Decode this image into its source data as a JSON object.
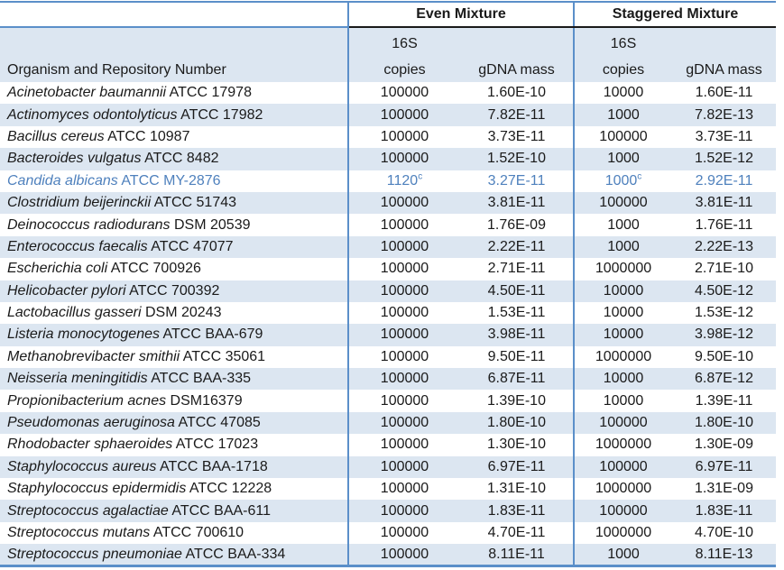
{
  "colors": {
    "band_blue": "#DCE6F1",
    "border_blue": "#5B8FC9",
    "group_underline": "#1A1A1A",
    "highlight_text_blue": "#4F81BD",
    "text": "#1A1A1A"
  },
  "table": {
    "groups": [
      "Even Mixture",
      "Staggered Mixture"
    ],
    "organism_header": "Organism and Repository Number",
    "copies_header_line1": "16S",
    "copies_header_line2": "copies",
    "mass_header": "gDNA mass",
    "footnote_marker": "c",
    "rows": [
      {
        "organism": "Acinetobacter baumannii",
        "repository": "ATCC 17978",
        "even_copies": "100000",
        "even_copies_sup": "",
        "even_mass": "1.60E-10",
        "staggered_copies": "10000",
        "staggered_copies_sup": "",
        "staggered_mass": "1.60E-11",
        "highlighted": false
      },
      {
        "organism": "Actinomyces odontolyticus",
        "repository": "ATCC 17982",
        "even_copies": "100000",
        "even_copies_sup": "",
        "even_mass": "7.82E-11",
        "staggered_copies": "1000",
        "staggered_copies_sup": "",
        "staggered_mass": "7.82E-13",
        "highlighted": false
      },
      {
        "organism": "Bacillus cereus",
        "repository": "ATCC 10987",
        "even_copies": "100000",
        "even_copies_sup": "",
        "even_mass": "3.73E-11",
        "staggered_copies": "100000",
        "staggered_copies_sup": "",
        "staggered_mass": "3.73E-11",
        "highlighted": false
      },
      {
        "organism": "Bacteroides vulgatus",
        "repository": "ATCC 8482",
        "even_copies": "100000",
        "even_copies_sup": "",
        "even_mass": "1.52E-10",
        "staggered_copies": "1000",
        "staggered_copies_sup": "",
        "staggered_mass": "1.52E-12",
        "highlighted": false
      },
      {
        "organism": "Candida albicans",
        "repository": "ATCC MY-2876",
        "even_copies": "1120",
        "even_copies_sup": "c",
        "even_mass": "3.27E-11",
        "staggered_copies": "1000",
        "staggered_copies_sup": "c",
        "staggered_mass": "2.92E-11",
        "highlighted": true
      },
      {
        "organism": "Clostridium beijerinckii",
        "repository": "ATCC 51743",
        "even_copies": "100000",
        "even_copies_sup": "",
        "even_mass": "3.81E-11",
        "staggered_copies": "100000",
        "staggered_copies_sup": "",
        "staggered_mass": "3.81E-11",
        "highlighted": false
      },
      {
        "organism": "Deinococcus radiodurans",
        "repository": "DSM 20539",
        "even_copies": "100000",
        "even_copies_sup": "",
        "even_mass": "1.76E-09",
        "staggered_copies": "1000",
        "staggered_copies_sup": "",
        "staggered_mass": "1.76E-11",
        "highlighted": false
      },
      {
        "organism": "Enterococcus faecalis",
        "repository": "ATCC 47077",
        "even_copies": "100000",
        "even_copies_sup": "",
        "even_mass": "2.22E-11",
        "staggered_copies": "1000",
        "staggered_copies_sup": "",
        "staggered_mass": "2.22E-13",
        "highlighted": false
      },
      {
        "organism": "Escherichia coli",
        "repository": "ATCC 700926",
        "even_copies": "100000",
        "even_copies_sup": "",
        "even_mass": "2.71E-11",
        "staggered_copies": "1000000",
        "staggered_copies_sup": "",
        "staggered_mass": "2.71E-10",
        "highlighted": false
      },
      {
        "organism": "Helicobacter pylori",
        "repository": "ATCC 700392",
        "even_copies": "100000",
        "even_copies_sup": "",
        "even_mass": "4.50E-11",
        "staggered_copies": "10000",
        "staggered_copies_sup": "",
        "staggered_mass": "4.50E-12",
        "highlighted": false
      },
      {
        "organism": "Lactobacillus gasseri",
        "repository": "DSM 20243",
        "even_copies": "100000",
        "even_copies_sup": "",
        "even_mass": "1.53E-11",
        "staggered_copies": "10000",
        "staggered_copies_sup": "",
        "staggered_mass": "1.53E-12",
        "highlighted": false
      },
      {
        "organism": "Listeria monocytogenes",
        "repository": "ATCC BAA-679",
        "even_copies": "100000",
        "even_copies_sup": "",
        "even_mass": "3.98E-11",
        "staggered_copies": "10000",
        "staggered_copies_sup": "",
        "staggered_mass": "3.98E-12",
        "highlighted": false
      },
      {
        "organism": "Methanobrevibacter smithii",
        "repository": "ATCC 35061",
        "even_copies": "100000",
        "even_copies_sup": "",
        "even_mass": "9.50E-11",
        "staggered_copies": "1000000",
        "staggered_copies_sup": "",
        "staggered_mass": "9.50E-10",
        "highlighted": false
      },
      {
        "organism": "Neisseria meningitidis",
        "repository": "ATCC BAA-335",
        "even_copies": "100000",
        "even_copies_sup": "",
        "even_mass": "6.87E-11",
        "staggered_copies": "10000",
        "staggered_copies_sup": "",
        "staggered_mass": "6.87E-12",
        "highlighted": false
      },
      {
        "organism": "Propionibacterium acnes",
        "repository": "DSM16379",
        "even_copies": "100000",
        "even_copies_sup": "",
        "even_mass": "1.39E-10",
        "staggered_copies": "10000",
        "staggered_copies_sup": "",
        "staggered_mass": "1.39E-11",
        "highlighted": false
      },
      {
        "organism": "Pseudomonas aeruginosa",
        "repository": "ATCC 47085",
        "even_copies": "100000",
        "even_copies_sup": "",
        "even_mass": "1.80E-10",
        "staggered_copies": "100000",
        "staggered_copies_sup": "",
        "staggered_mass": "1.80E-10",
        "highlighted": false
      },
      {
        "organism": "Rhodobacter sphaeroides",
        "repository": "ATCC 17023",
        "even_copies": "100000",
        "even_copies_sup": "",
        "even_mass": "1.30E-10",
        "staggered_copies": "1000000",
        "staggered_copies_sup": "",
        "staggered_mass": "1.30E-09",
        "highlighted": false
      },
      {
        "organism": "Staphylococcus aureus",
        "repository": "ATCC BAA-1718",
        "even_copies": "100000",
        "even_copies_sup": "",
        "even_mass": "6.97E-11",
        "staggered_copies": "100000",
        "staggered_copies_sup": "",
        "staggered_mass": "6.97E-11",
        "highlighted": false
      },
      {
        "organism": "Staphylococcus epidermidis",
        "repository": "ATCC 12228",
        "even_copies": "100000",
        "even_copies_sup": "",
        "even_mass": "1.31E-10",
        "staggered_copies": "1000000",
        "staggered_copies_sup": "",
        "staggered_mass": "1.31E-09",
        "highlighted": false
      },
      {
        "organism": "Streptococcus agalactiae",
        "repository": "ATCC BAA-611",
        "even_copies": "100000",
        "even_copies_sup": "",
        "even_mass": "1.83E-11",
        "staggered_copies": "100000",
        "staggered_copies_sup": "",
        "staggered_mass": "1.83E-11",
        "highlighted": false
      },
      {
        "organism": "Streptococcus mutans",
        "repository": "ATCC 700610",
        "even_copies": "100000",
        "even_copies_sup": "",
        "even_mass": "4.70E-11",
        "staggered_copies": "1000000",
        "staggered_copies_sup": "",
        "staggered_mass": "4.70E-10",
        "highlighted": false
      },
      {
        "organism": "Streptococcus pneumoniae",
        "repository": "ATCC BAA-334",
        "even_copies": "100000",
        "even_copies_sup": "",
        "even_mass": "8.11E-11",
        "staggered_copies": "1000",
        "staggered_copies_sup": "",
        "staggered_mass": "8.11E-13",
        "highlighted": false
      }
    ]
  }
}
